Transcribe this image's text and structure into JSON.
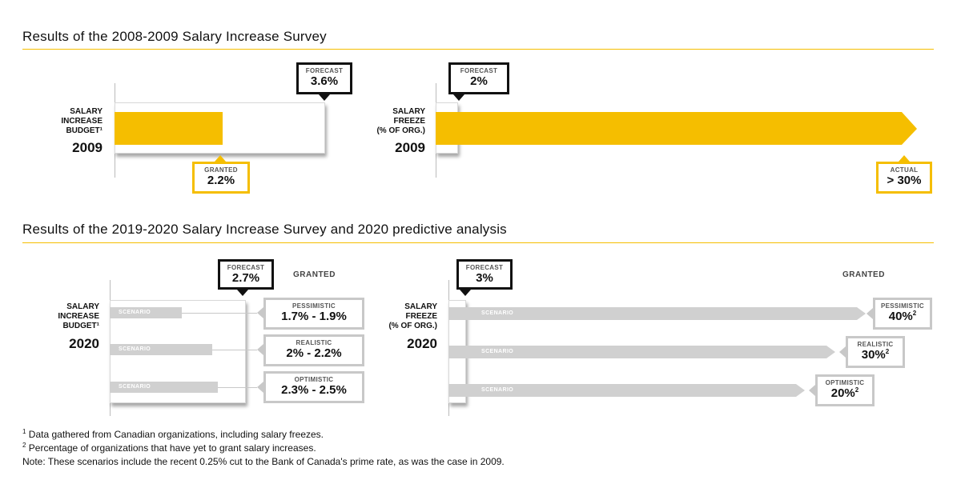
{
  "sections": [
    {
      "title": "Results of the 2008-2009 Salary Increase Survey"
    },
    {
      "title": "Results of the 2019-2020 Salary Increase Survey and 2020 predictive analysis"
    }
  ],
  "chart_data": [
    {
      "type": "bar",
      "row_label": [
        "SALARY",
        "INCREASE",
        "BUDGET¹"
      ],
      "year": "2009",
      "forecast": {
        "label": "FORECAST",
        "value_text": "3.6%",
        "value": 3.6
      },
      "granted": {
        "label": "GRANTED",
        "value_text": "2.2%",
        "value": 2.2
      },
      "colors": {
        "bar": "#f5be00",
        "forecast_border": "#111111",
        "granted_border": "#f5be00"
      }
    },
    {
      "type": "bar",
      "row_label": [
        "SALARY",
        "FREEZE",
        "(% OF ORG.)"
      ],
      "year": "2009",
      "forecast": {
        "label": "FORECAST",
        "value_text": "2%",
        "value": 2
      },
      "actual": {
        "label": "ACTUAL",
        "value_text": "> 30%",
        "value": 30
      },
      "colors": {
        "bar": "#f5be00"
      }
    },
    {
      "type": "bar",
      "row_label": [
        "SALARY",
        "INCREASE",
        "BUDGET¹"
      ],
      "year": "2020",
      "forecast": {
        "label": "FORECAST",
        "value_text": "2.7%",
        "value": 2.7
      },
      "granted_heading": "GRANTED",
      "scenarios": [
        {
          "bar_text": "SCENARIO",
          "name": "PESSIMISTIC",
          "range": "1.7% - 1.9%"
        },
        {
          "bar_text": "SCENARIO",
          "name": "REALISTIC",
          "range": "2% - 2.2%"
        },
        {
          "bar_text": "SCENARIO",
          "name": "OPTIMISTIC",
          "range": "2.3% - 2.5%"
        }
      ],
      "colors": {
        "bar": "#d0d0d0"
      }
    },
    {
      "type": "bar",
      "row_label": [
        "SALARY",
        "FREEZE",
        "(% OF ORG.)"
      ],
      "year": "2020",
      "forecast": {
        "label": "FORECAST",
        "value_text": "3%",
        "value": 3
      },
      "granted_heading": "GRANTED",
      "scenarios": [
        {
          "bar_text": "SCENARIO",
          "name": "PESSIMISTIC",
          "value_text": "40%",
          "sup": "2",
          "value": 40
        },
        {
          "bar_text": "SCENARIO",
          "name": "REALISTIC",
          "value_text": "30%",
          "sup": "2",
          "value": 30
        },
        {
          "bar_text": "SCENARIO",
          "name": "OPTIMISTIC",
          "value_text": "20%",
          "sup": "2",
          "value": 20
        }
      ],
      "colors": {
        "bar": "#d0d0d0"
      }
    }
  ],
  "footnotes": [
    {
      "mark": "1",
      "text": " Data gathered from Canadian organizations, including salary freezes."
    },
    {
      "mark": "2",
      "text": " Percentage of organizations that have yet to grant salary increases."
    },
    {
      "mark": "",
      "text": "Note: These scenarios include the recent 0.25% cut to the Bank of Canada's prime rate, as was the case in 2009."
    }
  ]
}
